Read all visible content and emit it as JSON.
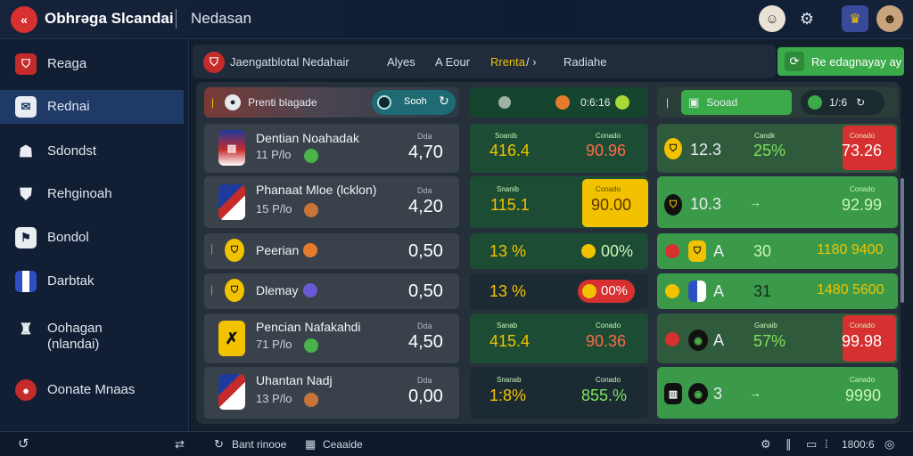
{
  "header": {
    "logo_glyph": "«",
    "app_title": "Obhrəga Slcandai",
    "section_title": "Nedasan",
    "icons": [
      "avatar-coach",
      "settings-icon",
      "club-badge-icon",
      "avatar-user"
    ]
  },
  "sidebar": {
    "items": [
      {
        "label": "Reaga",
        "icon": "team-crest-icon"
      },
      {
        "label": "Rednai",
        "icon": "inbox-icon"
      },
      {
        "label": "Sdondst",
        "icon": "people-icon"
      },
      {
        "label": "Rehginoah",
        "icon": "shield-icon"
      },
      {
        "label": "Bondol",
        "icon": "flag-icon"
      },
      {
        "label": "Darbtak",
        "icon": "crest-stripes-icon"
      },
      {
        "label": "Oohagan\n(nlandai)",
        "icon": "trophy-icon"
      },
      {
        "label": "Oonate Mnaas",
        "icon": "ball-icon"
      }
    ]
  },
  "crumbs": {
    "title": "Jaengatblotal Nedahair",
    "items": [
      "Alyes",
      "A  Eour",
      "Rrenta",
      "Radiahe"
    ],
    "cta": "Re edagnayay ay"
  },
  "columns": {
    "a": "Prenti blagade",
    "b_value": "0:6:16",
    "c_label": "Sooad",
    "c_value": "1/:6"
  },
  "rows": [
    {
      "name": "Dentian Noahadak",
      "sub": "11  P/lo",
      "odds_label": "Dda",
      "odds": "4,70",
      "b_left_lbl": "Soanib",
      "b_left": "416.4",
      "b_right_lbl": "Conado",
      "b_right": "90.96",
      "c_left": "12.3",
      "c_mid_lbl": "Candk",
      "c_mid": "25%",
      "c_right_lbl": "Conado",
      "c_right": "73.26"
    },
    {
      "name": "Phanaat Mloe (lcklon)",
      "sub": "15  P/lo",
      "odds_label": "Dda",
      "odds": "4,20",
      "b_left_lbl": "Snanib",
      "b_left": "115.1",
      "b_right_lbl": "Conado",
      "b_right": "90.00",
      "c_left": "10.3",
      "c_mid_lbl": "→",
      "c_mid": "",
      "c_right_lbl": "Conado",
      "c_right": "92.99"
    },
    {
      "name": "Peerian",
      "sub": "",
      "odds_label": "",
      "odds": "0,50",
      "b_left_lbl": "",
      "b_left": "13 %",
      "b_right_lbl": "",
      "b_right": "00%",
      "c_left": "A",
      "c_mid_lbl": "",
      "c_mid": "30",
      "c_right_lbl": "",
      "c_right": "1180  9400"
    },
    {
      "name": "Dlemay",
      "sub": "",
      "odds_label": "",
      "odds": "0,50",
      "b_left_lbl": "",
      "b_left": "13 %",
      "b_right_lbl": "",
      "b_right": "00%",
      "c_left": "A",
      "c_mid_lbl": "",
      "c_mid": "31",
      "c_right_lbl": "",
      "c_right": "1480  5600"
    },
    {
      "name": "Pencian Nafakahdi",
      "sub": "71  P/lo",
      "odds_label": "Dda",
      "odds": "4,50",
      "b_left_lbl": "Sanab",
      "b_left": "415.4",
      "b_right_lbl": "Conado",
      "b_right": "90.36",
      "c_left": "A",
      "c_mid_lbl": "Ganaib",
      "c_mid": "57%",
      "c_right_lbl": "Conado",
      "c_right": "99.98"
    },
    {
      "name": "Uhantan Nadj",
      "sub": "13  P/lo",
      "odds_label": "Dda",
      "odds": "0,00",
      "b_left_lbl": "Snanab",
      "b_left": "1:8%",
      "b_right_lbl": "Conado",
      "b_right": "855.%",
      "c_left": "3",
      "c_mid_lbl": "→",
      "c_mid": "",
      "c_right_lbl": "Canado",
      "c_right": "9990"
    }
  ],
  "footer": {
    "left": "Bant rinooe",
    "mid": "Ceaaide",
    "right": "1800:6"
  },
  "colors": {
    "accent_green": "#3bab4a",
    "accent_red": "#d63030",
    "accent_yellow": "#f2c200"
  }
}
